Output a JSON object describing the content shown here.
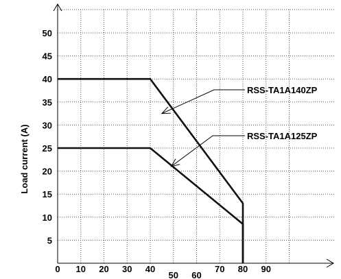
{
  "chart_data": {
    "type": "line",
    "title": "",
    "xlabel": "",
    "ylabel": "Load current (A)",
    "xlim": [
      0,
      100
    ],
    "ylim": [
      0,
      55
    ],
    "grid": true,
    "y_ticks": [
      5,
      10,
      15,
      20,
      25,
      30,
      35,
      40,
      45,
      50
    ],
    "x_ticks": [
      {
        "value": 0,
        "label": "0"
      },
      {
        "value": 10,
        "label": "10"
      },
      {
        "value": 20,
        "label": "20"
      },
      {
        "value": 30,
        "label": "30"
      },
      {
        "value": 40,
        "label": "40"
      },
      {
        "value": 50,
        "label": "50"
      },
      {
        "value": 60,
        "label": "60"
      },
      {
        "value": 70,
        "label": "70"
      },
      {
        "value": 80,
        "label": "80"
      },
      {
        "value": 90,
        "label": "90"
      }
    ],
    "series": [
      {
        "name": "RSS-TA1A140ZP",
        "x": [
          0,
          40,
          80,
          80
        ],
        "y": [
          40,
          40,
          13,
          0
        ]
      },
      {
        "name": "RSS-TA1A125ZP",
        "x": [
          0,
          40,
          80,
          80
        ],
        "y": [
          25,
          25,
          8.5,
          0
        ]
      }
    ],
    "annotations": [
      {
        "text": "RSS-TA1A140ZP",
        "series": 0,
        "points_to": {
          "x": 45,
          "y": 32.5
        }
      },
      {
        "text": "RSS-TA1A125ZP",
        "series": 1,
        "points_to": {
          "x": 49,
          "y": 21
        }
      }
    ]
  }
}
